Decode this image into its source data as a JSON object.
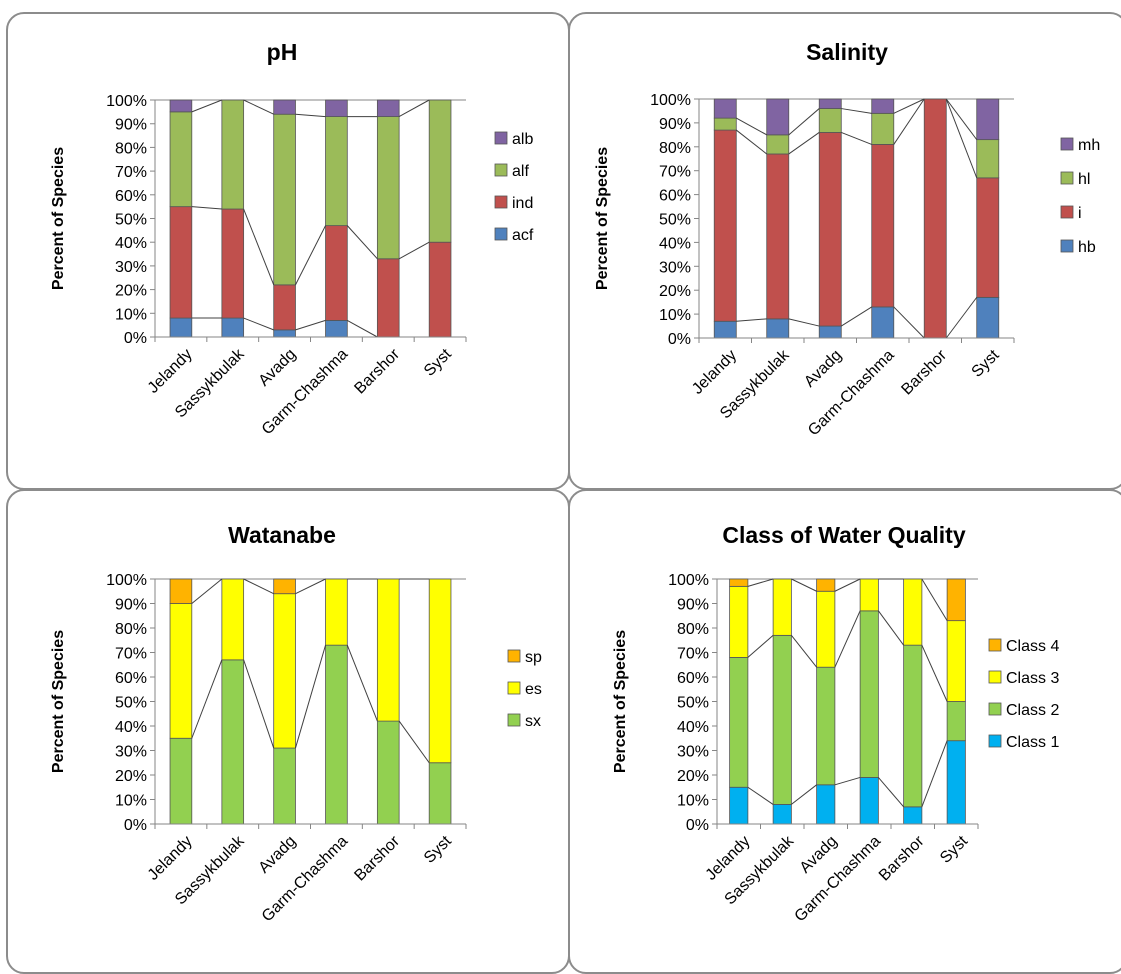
{
  "colors": {
    "alb": "#8064a2",
    "alf": "#9bbb59",
    "ind": "#c0504d",
    "acf": "#4f81bd",
    "sp": "#ffb300",
    "es": "#ffff00",
    "sx": "#92d050",
    "class4": "#ffb300",
    "class3": "#ffff00",
    "class2": "#92d050",
    "class1": "#00b0f0"
  },
  "chart_data": [
    {
      "type": "bar",
      "stacked": true,
      "title": "pH",
      "ylabel": "Percent of Species",
      "xlabel": "",
      "ylim": [
        0,
        100
      ],
      "yticks": [
        "0%",
        "10%",
        "20%",
        "30%",
        "40%",
        "50%",
        "60%",
        "70%",
        "80%",
        "90%",
        "100%"
      ],
      "categories": [
        "Jelandy",
        "Sassykbulak",
        "Avadg",
        "Garm-Chashma",
        "Barshor",
        "Syst"
      ],
      "legend_position": "right",
      "series": [
        {
          "name": "acf",
          "color": "#4f81bd",
          "values": [
            8,
            8,
            3,
            7,
            0,
            0
          ]
        },
        {
          "name": "ind",
          "color": "#c0504d",
          "values": [
            47,
            46,
            19,
            40,
            33,
            40
          ]
        },
        {
          "name": "alf",
          "color": "#9bbb59",
          "values": [
            40,
            46,
            72,
            46,
            60,
            60
          ]
        },
        {
          "name": "alb",
          "color": "#8064a2",
          "values": [
            5,
            0,
            6,
            7,
            7,
            0
          ]
        }
      ]
    },
    {
      "type": "bar",
      "stacked": true,
      "title": "Salinity",
      "ylabel": "Percent of Species",
      "xlabel": "",
      "ylim": [
        0,
        100
      ],
      "yticks": [
        "0%",
        "10%",
        "20%",
        "30%",
        "40%",
        "50%",
        "60%",
        "70%",
        "80%",
        "90%",
        "100%"
      ],
      "categories": [
        "Jelandy",
        "Sassykbulak",
        "Avadg",
        "Garm-Chashma",
        "Barshor",
        "Syst"
      ],
      "legend_position": "right",
      "series": [
        {
          "name": "hb",
          "color": "#4f81bd",
          "values": [
            7,
            8,
            5,
            13,
            0,
            17
          ]
        },
        {
          "name": "i",
          "color": "#c0504d",
          "values": [
            80,
            69,
            81,
            68,
            100,
            50
          ]
        },
        {
          "name": "hl",
          "color": "#9bbb59",
          "values": [
            5,
            8,
            10,
            13,
            0,
            16
          ]
        },
        {
          "name": "mh",
          "color": "#8064a2",
          "values": [
            8,
            15,
            4,
            6,
            0,
            17
          ]
        }
      ]
    },
    {
      "type": "bar",
      "stacked": true,
      "title": "Watanabe",
      "ylabel": "Percent of Species",
      "xlabel": "",
      "ylim": [
        0,
        100
      ],
      "yticks": [
        "0%",
        "10%",
        "20%",
        "30%",
        "40%",
        "50%",
        "60%",
        "70%",
        "80%",
        "90%",
        "100%"
      ],
      "categories": [
        "Jelandy",
        "Sassykbulak",
        "Avadg",
        "Garm-Chashma",
        "Barshor",
        "Syst"
      ],
      "legend_position": "right",
      "series": [
        {
          "name": "sx",
          "color": "#92d050",
          "values": [
            35,
            67,
            31,
            73,
            42,
            25
          ]
        },
        {
          "name": "es",
          "color": "#ffff00",
          "values": [
            55,
            33,
            63,
            27,
            58,
            75
          ]
        },
        {
          "name": "sp",
          "color": "#ffb300",
          "values": [
            10,
            0,
            6,
            0,
            0,
            0
          ]
        }
      ]
    },
    {
      "type": "bar",
      "stacked": true,
      "title": "Class of Water Quality",
      "ylabel": "Percent of Species",
      "xlabel": "",
      "ylim": [
        0,
        100
      ],
      "yticks": [
        "0%",
        "10%",
        "20%",
        "30%",
        "40%",
        "50%",
        "60%",
        "70%",
        "80%",
        "90%",
        "100%"
      ],
      "categories": [
        "Jelandy",
        "Sassykbulak",
        "Avadg",
        "Garm-Chashma",
        "Barshor",
        "Syst"
      ],
      "legend_position": "right",
      "series": [
        {
          "name": "Class 1",
          "color": "#00b0f0",
          "values": [
            15,
            8,
            16,
            19,
            7,
            34
          ]
        },
        {
          "name": "Class 2",
          "color": "#92d050",
          "values": [
            53,
            69,
            48,
            68,
            66,
            16
          ]
        },
        {
          "name": "Class 3",
          "color": "#ffff00",
          "values": [
            29,
            23,
            31,
            13,
            27,
            33
          ]
        },
        {
          "name": "Class 4",
          "color": "#ffb300",
          "values": [
            3,
            0,
            5,
            0,
            0,
            17
          ]
        }
      ]
    }
  ]
}
